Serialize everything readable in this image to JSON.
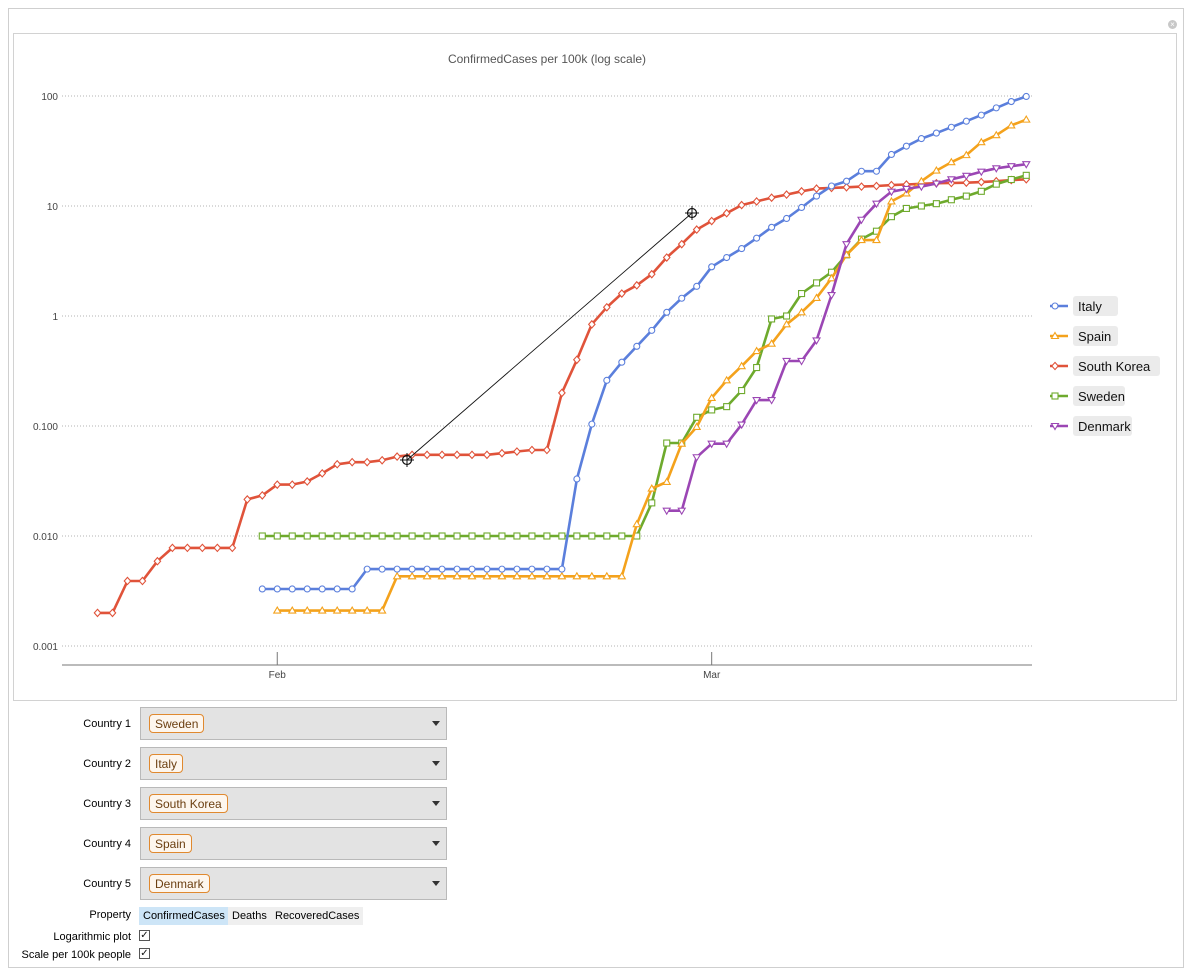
{
  "window": {
    "close_icon": "close-icon"
  },
  "chart_data": {
    "type": "line",
    "title": "ConfirmedCases per 100k (log scale)",
    "yscale": "log",
    "ylim": [
      0.001,
      100
    ],
    "ytick_labels": [
      "0.001",
      "0.010",
      "0.100",
      "1",
      "10",
      "100"
    ],
    "xtick_labels": [
      "Feb",
      "Mar"
    ],
    "xlim": [
      "2020-01-20",
      "2020-03-25"
    ],
    "grid": "horizontal dotted",
    "legend_position": "right",
    "series": [
      {
        "name": "Italy",
        "color": "#5b7fdc",
        "marker": "circle",
        "x": [
          "2020-01-31",
          "2020-02-01",
          "2020-02-02",
          "2020-02-03",
          "2020-02-04",
          "2020-02-05",
          "2020-02-06",
          "2020-02-07",
          "2020-02-08",
          "2020-02-09",
          "2020-02-10",
          "2020-02-11",
          "2020-02-12",
          "2020-02-13",
          "2020-02-14",
          "2020-02-15",
          "2020-02-16",
          "2020-02-17",
          "2020-02-18",
          "2020-02-19",
          "2020-02-20",
          "2020-02-21",
          "2020-02-22",
          "2020-02-23",
          "2020-02-24",
          "2020-02-25",
          "2020-02-26",
          "2020-02-27",
          "2020-02-28",
          "2020-02-29",
          "2020-03-01",
          "2020-03-02",
          "2020-03-03",
          "2020-03-04",
          "2020-03-05",
          "2020-03-06",
          "2020-03-07",
          "2020-03-08",
          "2020-03-09",
          "2020-03-10",
          "2020-03-11",
          "2020-03-12",
          "2020-03-13",
          "2020-03-14",
          "2020-03-15",
          "2020-03-16",
          "2020-03-17",
          "2020-03-18",
          "2020-03-19",
          "2020-03-20",
          "2020-03-21",
          "2020-03-22"
        ],
        "y": [
          0.0033,
          0.0033,
          0.0033,
          0.0033,
          0.0033,
          0.0033,
          0.0033,
          0.005,
          0.005,
          0.005,
          0.005,
          0.005,
          0.005,
          0.005,
          0.005,
          0.005,
          0.005,
          0.005,
          0.005,
          0.005,
          0.005,
          0.033,
          0.104,
          0.26,
          0.38,
          0.53,
          0.74,
          1.08,
          1.45,
          1.86,
          2.8,
          3.4,
          4.1,
          5.1,
          6.4,
          7.7,
          9.7,
          12.3,
          15.2,
          16.8,
          20.7,
          20.7,
          29.4,
          35.0,
          41.0,
          46.0,
          52.0,
          59.0,
          67.0,
          78.0,
          89.0,
          99.0
        ]
      },
      {
        "name": "Spain",
        "color": "#f4a21c",
        "marker": "triangle-up",
        "x": [
          "2020-02-01",
          "2020-02-02",
          "2020-02-03",
          "2020-02-04",
          "2020-02-05",
          "2020-02-06",
          "2020-02-07",
          "2020-02-08",
          "2020-02-09",
          "2020-02-10",
          "2020-02-11",
          "2020-02-12",
          "2020-02-13",
          "2020-02-14",
          "2020-02-15",
          "2020-02-16",
          "2020-02-17",
          "2020-02-18",
          "2020-02-19",
          "2020-02-20",
          "2020-02-21",
          "2020-02-22",
          "2020-02-23",
          "2020-02-24",
          "2020-02-25",
          "2020-02-26",
          "2020-02-27",
          "2020-02-28",
          "2020-02-29",
          "2020-03-01",
          "2020-03-02",
          "2020-03-03",
          "2020-03-04",
          "2020-03-05",
          "2020-03-06",
          "2020-03-07",
          "2020-03-08",
          "2020-03-09",
          "2020-03-10",
          "2020-03-11",
          "2020-03-12",
          "2020-03-13",
          "2020-03-14",
          "2020-03-15",
          "2020-03-16",
          "2020-03-17",
          "2020-03-18",
          "2020-03-19",
          "2020-03-20",
          "2020-03-21",
          "2020-03-22"
        ],
        "y": [
          0.0021,
          0.0021,
          0.0021,
          0.0021,
          0.0021,
          0.0021,
          0.0021,
          0.0021,
          0.0043,
          0.0043,
          0.0043,
          0.0043,
          0.0043,
          0.0043,
          0.0043,
          0.0043,
          0.0043,
          0.0043,
          0.0043,
          0.0043,
          0.0043,
          0.0043,
          0.0043,
          0.0043,
          0.0128,
          0.027,
          0.031,
          0.069,
          0.098,
          0.18,
          0.26,
          0.35,
          0.48,
          0.56,
          0.84,
          1.08,
          1.46,
          2.2,
          3.6,
          4.9,
          4.9,
          11.0,
          13.0,
          16.8,
          21.0,
          25.0,
          29.0,
          38.0,
          44.0,
          54.0,
          61.0
        ]
      },
      {
        "name": "South Korea",
        "color": "#e0533a",
        "marker": "diamond",
        "x": [
          "2020-01-20",
          "2020-01-21",
          "2020-01-22",
          "2020-01-23",
          "2020-01-24",
          "2020-01-25",
          "2020-01-26",
          "2020-01-27",
          "2020-01-28",
          "2020-01-29",
          "2020-01-30",
          "2020-01-31",
          "2020-02-01",
          "2020-02-02",
          "2020-02-03",
          "2020-02-04",
          "2020-02-05",
          "2020-02-06",
          "2020-02-07",
          "2020-02-08",
          "2020-02-09",
          "2020-02-10",
          "2020-02-11",
          "2020-02-12",
          "2020-02-13",
          "2020-02-14",
          "2020-02-15",
          "2020-02-16",
          "2020-02-17",
          "2020-02-18",
          "2020-02-19",
          "2020-02-20",
          "2020-02-21",
          "2020-02-22",
          "2020-02-23",
          "2020-02-24",
          "2020-02-25",
          "2020-02-26",
          "2020-02-27",
          "2020-02-28",
          "2020-02-29",
          "2020-03-01",
          "2020-03-02",
          "2020-03-03",
          "2020-03-04",
          "2020-03-05",
          "2020-03-06",
          "2020-03-07",
          "2020-03-08",
          "2020-03-09",
          "2020-03-10",
          "2020-03-11",
          "2020-03-12",
          "2020-03-13",
          "2020-03-14",
          "2020-03-15",
          "2020-03-16",
          "2020-03-17",
          "2020-03-18",
          "2020-03-19",
          "2020-03-20",
          "2020-03-21",
          "2020-03-22"
        ],
        "y": [
          0.002,
          0.002,
          0.0039,
          0.0039,
          0.0059,
          0.0078,
          0.0078,
          0.0078,
          0.0078,
          0.0078,
          0.0215,
          0.0234,
          0.0293,
          0.0293,
          0.0313,
          0.0371,
          0.0449,
          0.0469,
          0.0469,
          0.0488,
          0.0527,
          0.0547,
          0.0547,
          0.0547,
          0.0547,
          0.0547,
          0.0547,
          0.0566,
          0.0586,
          0.0605,
          0.0605,
          0.2,
          0.4,
          0.84,
          1.2,
          1.6,
          1.9,
          2.4,
          3.4,
          4.5,
          6.1,
          7.3,
          8.6,
          10.2,
          11.0,
          11.9,
          12.7,
          13.6,
          14.4,
          14.6,
          14.8,
          15.0,
          15.2,
          15.5,
          15.7,
          15.9,
          16.1,
          16.2,
          16.3,
          16.5,
          16.8,
          17.2,
          17.5
        ]
      },
      {
        "name": "Sweden",
        "color": "#6eaa2d",
        "marker": "square",
        "x": [
          "2020-01-31",
          "2020-02-01",
          "2020-02-02",
          "2020-02-03",
          "2020-02-04",
          "2020-02-05",
          "2020-02-06",
          "2020-02-07",
          "2020-02-08",
          "2020-02-09",
          "2020-02-10",
          "2020-02-11",
          "2020-02-12",
          "2020-02-13",
          "2020-02-14",
          "2020-02-15",
          "2020-02-16",
          "2020-02-17",
          "2020-02-18",
          "2020-02-19",
          "2020-02-20",
          "2020-02-21",
          "2020-02-22",
          "2020-02-23",
          "2020-02-24",
          "2020-02-25",
          "2020-02-26",
          "2020-02-27",
          "2020-02-28",
          "2020-02-29",
          "2020-03-01",
          "2020-03-02",
          "2020-03-03",
          "2020-03-04",
          "2020-03-05",
          "2020-03-06",
          "2020-03-07",
          "2020-03-08",
          "2020-03-09",
          "2020-03-10",
          "2020-03-11",
          "2020-03-12",
          "2020-03-13",
          "2020-03-14",
          "2020-03-15",
          "2020-03-16",
          "2020-03-17",
          "2020-03-18",
          "2020-03-19",
          "2020-03-20",
          "2020-03-21",
          "2020-03-22"
        ],
        "y": [
          0.01,
          0.01,
          0.01,
          0.01,
          0.01,
          0.01,
          0.01,
          0.01,
          0.01,
          0.01,
          0.01,
          0.01,
          0.01,
          0.01,
          0.01,
          0.01,
          0.01,
          0.01,
          0.01,
          0.01,
          0.01,
          0.01,
          0.01,
          0.01,
          0.01,
          0.01,
          0.02,
          0.07,
          0.07,
          0.12,
          0.14,
          0.15,
          0.21,
          0.34,
          0.94,
          1.0,
          1.6,
          2.0,
          2.5,
          3.6,
          5.0,
          5.9,
          8.0,
          9.5,
          10.0,
          10.5,
          11.4,
          12.3,
          13.6,
          15.8,
          17.4,
          19.0
        ]
      },
      {
        "name": "Denmark",
        "color": "#9b46b4",
        "marker": "triangle-down",
        "x": [
          "2020-02-27",
          "2020-02-28",
          "2020-02-29",
          "2020-03-01",
          "2020-03-02",
          "2020-03-03",
          "2020-03-04",
          "2020-03-05",
          "2020-03-06",
          "2020-03-07",
          "2020-03-08",
          "2020-03-09",
          "2020-03-10",
          "2020-03-11",
          "2020-03-12",
          "2020-03-13",
          "2020-03-14",
          "2020-03-15",
          "2020-03-16",
          "2020-03-17",
          "2020-03-18",
          "2020-03-19",
          "2020-03-20",
          "2020-03-21",
          "2020-03-22"
        ],
        "y": [
          0.017,
          0.017,
          0.052,
          0.069,
          0.069,
          0.103,
          0.172,
          0.172,
          0.39,
          0.39,
          0.6,
          1.55,
          4.5,
          7.5,
          10.5,
          13.5,
          14.3,
          15.0,
          16.0,
          17.5,
          18.8,
          20.5,
          22.0,
          23.0,
          24.0
        ]
      }
    ],
    "crosshair_marker": "crosshair-icon"
  },
  "controls": {
    "country_rows": [
      {
        "label": "Country 1",
        "value": "Sweden"
      },
      {
        "label": "Country 2",
        "value": "Italy"
      },
      {
        "label": "Country 3",
        "value": "South Korea"
      },
      {
        "label": "Country 4",
        "value": "Spain"
      },
      {
        "label": "Country 5",
        "value": "Denmark"
      }
    ],
    "property": {
      "label": "Property",
      "options": [
        "ConfirmedCases",
        "Deaths",
        "RecoveredCases"
      ],
      "selected": "ConfirmedCases"
    },
    "log_plot": {
      "label": "Logarithmic plot",
      "checked": true
    },
    "scale_100k": {
      "label": "Scale per 100k people",
      "checked": true
    }
  }
}
